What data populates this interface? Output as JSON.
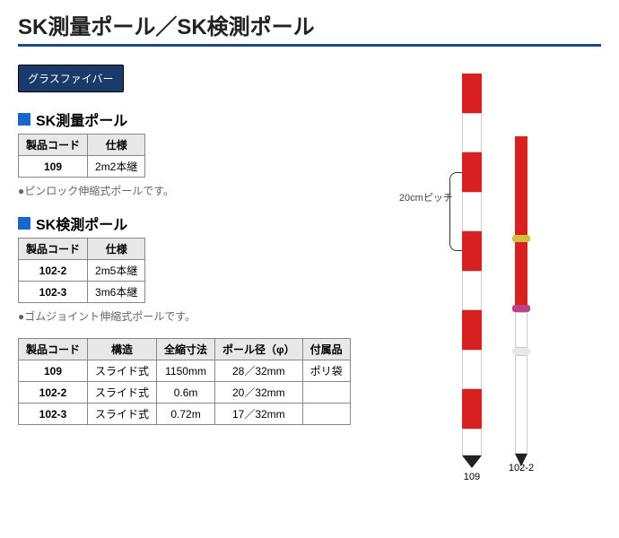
{
  "title": "SK測量ポール／SK検測ポール",
  "title_underline_color": "#1a4a8a",
  "badge": {
    "label": "グラスファイバー",
    "bg": "#1a3a6a"
  },
  "accent_square_color": "#1a66cc",
  "section1": {
    "title": "SK測量ポール",
    "table": {
      "headers": [
        "製品コード",
        "仕様"
      ],
      "rows": [
        [
          "109",
          "2m2本継"
        ]
      ]
    },
    "note": "●ピンロック伸縮式ポールです。"
  },
  "section2": {
    "title": "SK検測ポール",
    "table": {
      "headers": [
        "製品コード",
        "仕様"
      ],
      "rows": [
        [
          "102-2",
          "2m5本継"
        ],
        [
          "102-3",
          "3m6本継"
        ]
      ]
    },
    "note": "●ゴムジョイント伸縮式ポールです。"
  },
  "spec_table": {
    "headers": [
      "製品コード",
      "構造",
      "全縮寸法",
      "ポール径（φ）",
      "付属品"
    ],
    "rows": [
      [
        "109",
        "スライド式",
        "1150mm",
        "28／32mm",
        "ポリ袋"
      ],
      [
        "102-2",
        "スライド式",
        "0.6m",
        "20／32mm",
        ""
      ],
      [
        "102-3",
        "スライド式",
        "0.72m",
        "17／32mm",
        ""
      ]
    ]
  },
  "illustration": {
    "pitch_label": "20cmピッチ",
    "pole109": {
      "label": "109",
      "segments": [
        {
          "color": "#d82020",
          "h": 44
        },
        {
          "color": "#ffffff",
          "h": 44,
          "border": "#ccc"
        },
        {
          "color": "#d82020",
          "h": 44
        },
        {
          "color": "#ffffff",
          "h": 44,
          "border": "#ccc"
        },
        {
          "color": "#d82020",
          "h": 44
        },
        {
          "color": "#ffffff",
          "h": 44,
          "border": "#ccc"
        },
        {
          "color": "#d82020",
          "h": 44
        },
        {
          "color": "#ffffff",
          "h": 44,
          "border": "#ccc"
        },
        {
          "color": "#d82020",
          "h": 44
        },
        {
          "color": "#ffffff",
          "h": 30,
          "border": "#ccc"
        }
      ],
      "tip_color": "#222"
    },
    "pole102": {
      "label": "102-2",
      "segments": [
        {
          "color": "#d82020",
          "h": 110
        },
        {
          "type": "joint",
          "color": "#d4c040",
          "h": 8
        },
        {
          "color": "#d82020",
          "h": 70
        },
        {
          "type": "joint",
          "color": "#c04080",
          "h": 8
        },
        {
          "color": "#ffffff",
          "h": 40,
          "border": "#ccc"
        },
        {
          "type": "joint",
          "color": "#e8e8e8",
          "h": 8
        },
        {
          "color": "#ffffff",
          "h": 110,
          "border": "#ccc"
        }
      ],
      "tip_color": "#222"
    }
  }
}
